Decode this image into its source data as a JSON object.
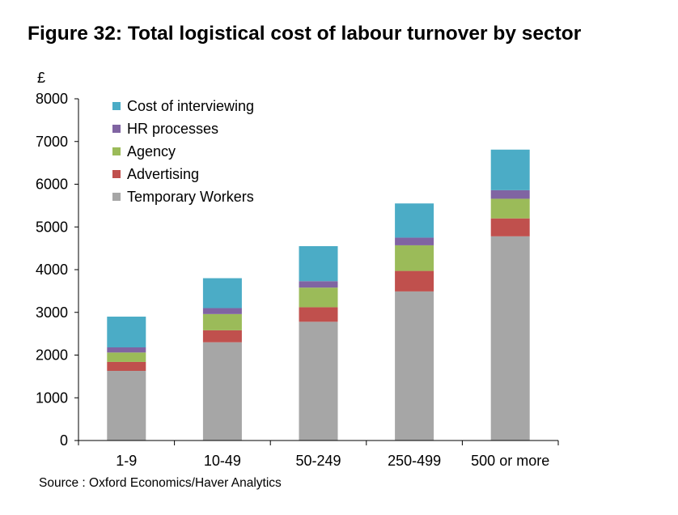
{
  "title": "Figure 32: Total logistical cost of labour turnover by sector",
  "source": "Source : Oxford Economics/Haver Analytics",
  "chart_data": {
    "type": "bar",
    "stacked": true,
    "title": "Figure 32: Total logistical cost of labour turnover by sector",
    "xlabel": "",
    "ylabel": "£",
    "ylim": [
      0,
      8000
    ],
    "yticks": [
      0,
      1000,
      2000,
      3000,
      4000,
      5000,
      6000,
      7000,
      8000
    ],
    "categories": [
      "1-9",
      "10-49",
      "50-249",
      "250-499",
      "500 or more"
    ],
    "series": [
      {
        "name": "Temporary Workers",
        "color": "#a6a6a6",
        "values": [
          1630,
          2300,
          2780,
          3490,
          4780
        ]
      },
      {
        "name": "Advertising",
        "color": "#c0504d",
        "values": [
          210,
          280,
          340,
          480,
          420
        ]
      },
      {
        "name": "Agency",
        "color": "#9bbb59",
        "values": [
          220,
          380,
          460,
          600,
          460
        ]
      },
      {
        "name": "HR processes",
        "color": "#8064a2",
        "values": [
          120,
          140,
          150,
          180,
          200
        ]
      },
      {
        "name": "Cost of interviewing",
        "color": "#4bacc6",
        "values": [
          720,
          700,
          820,
          800,
          950
        ]
      }
    ],
    "legend_order": [
      "Cost of interviewing",
      "HR processes",
      "Agency",
      "Advertising",
      "Temporary Workers"
    ],
    "legend_position": "top-left",
    "grid": false
  }
}
